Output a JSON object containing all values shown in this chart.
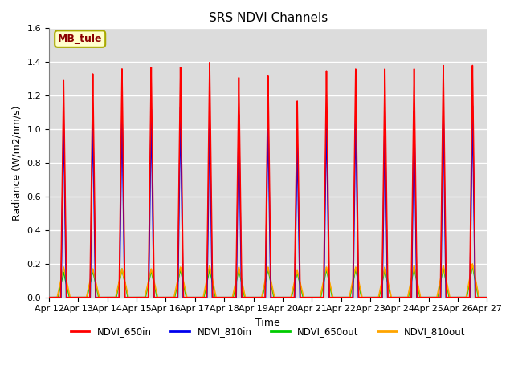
{
  "title": "SRS NDVI Channels",
  "xlabel": "Time",
  "ylabel": "Radiance (W/m2/nm/s)",
  "ylim": [
    0,
    1.6
  ],
  "x_tick_labels": [
    "Apr 12",
    "Apr 13",
    "Apr 14",
    "Apr 15",
    "Apr 16",
    "Apr 17",
    "Apr 18",
    "Apr 19",
    "Apr 20",
    "Apr 21",
    "Apr 22",
    "Apr 23",
    "Apr 24",
    "Apr 25",
    "Apr 26",
    "Apr 27"
  ],
  "annotation_text": "MB_tule",
  "annotation_color": "#8B0000",
  "annotation_bg": "#FFFFCC",
  "annotation_border": "#AAAA00",
  "colors": {
    "NDVI_650in": "#FF0000",
    "NDVI_810in": "#0000EE",
    "NDVI_650out": "#00CC00",
    "NDVI_810out": "#FFA500"
  },
  "background_color": "#DCDCDC",
  "grid_color": "#FFFFFF",
  "peaks_650in": [
    1.29,
    1.33,
    1.36,
    1.37,
    1.37,
    1.4,
    1.31,
    1.32,
    1.17,
    1.35,
    1.36,
    1.36,
    1.36,
    1.38,
    1.38
  ],
  "peaks_810in": [
    1.06,
    1.09,
    1.11,
    1.12,
    1.13,
    1.09,
    1.09,
    1.09,
    0.93,
    1.1,
    1.11,
    1.1,
    1.11,
    1.13,
    1.14
  ],
  "peaks_650out": [
    0.15,
    0.16,
    0.17,
    0.16,
    0.17,
    0.17,
    0.17,
    0.17,
    0.15,
    0.17,
    0.17,
    0.17,
    0.18,
    0.18,
    0.19
  ],
  "peaks_810out": [
    0.18,
    0.17,
    0.17,
    0.17,
    0.18,
    0.19,
    0.18,
    0.18,
    0.16,
    0.18,
    0.18,
    0.18,
    0.19,
    0.19,
    0.2
  ],
  "n_days": 15,
  "title_fontsize": 11,
  "label_fontsize": 9,
  "tick_fontsize": 8
}
